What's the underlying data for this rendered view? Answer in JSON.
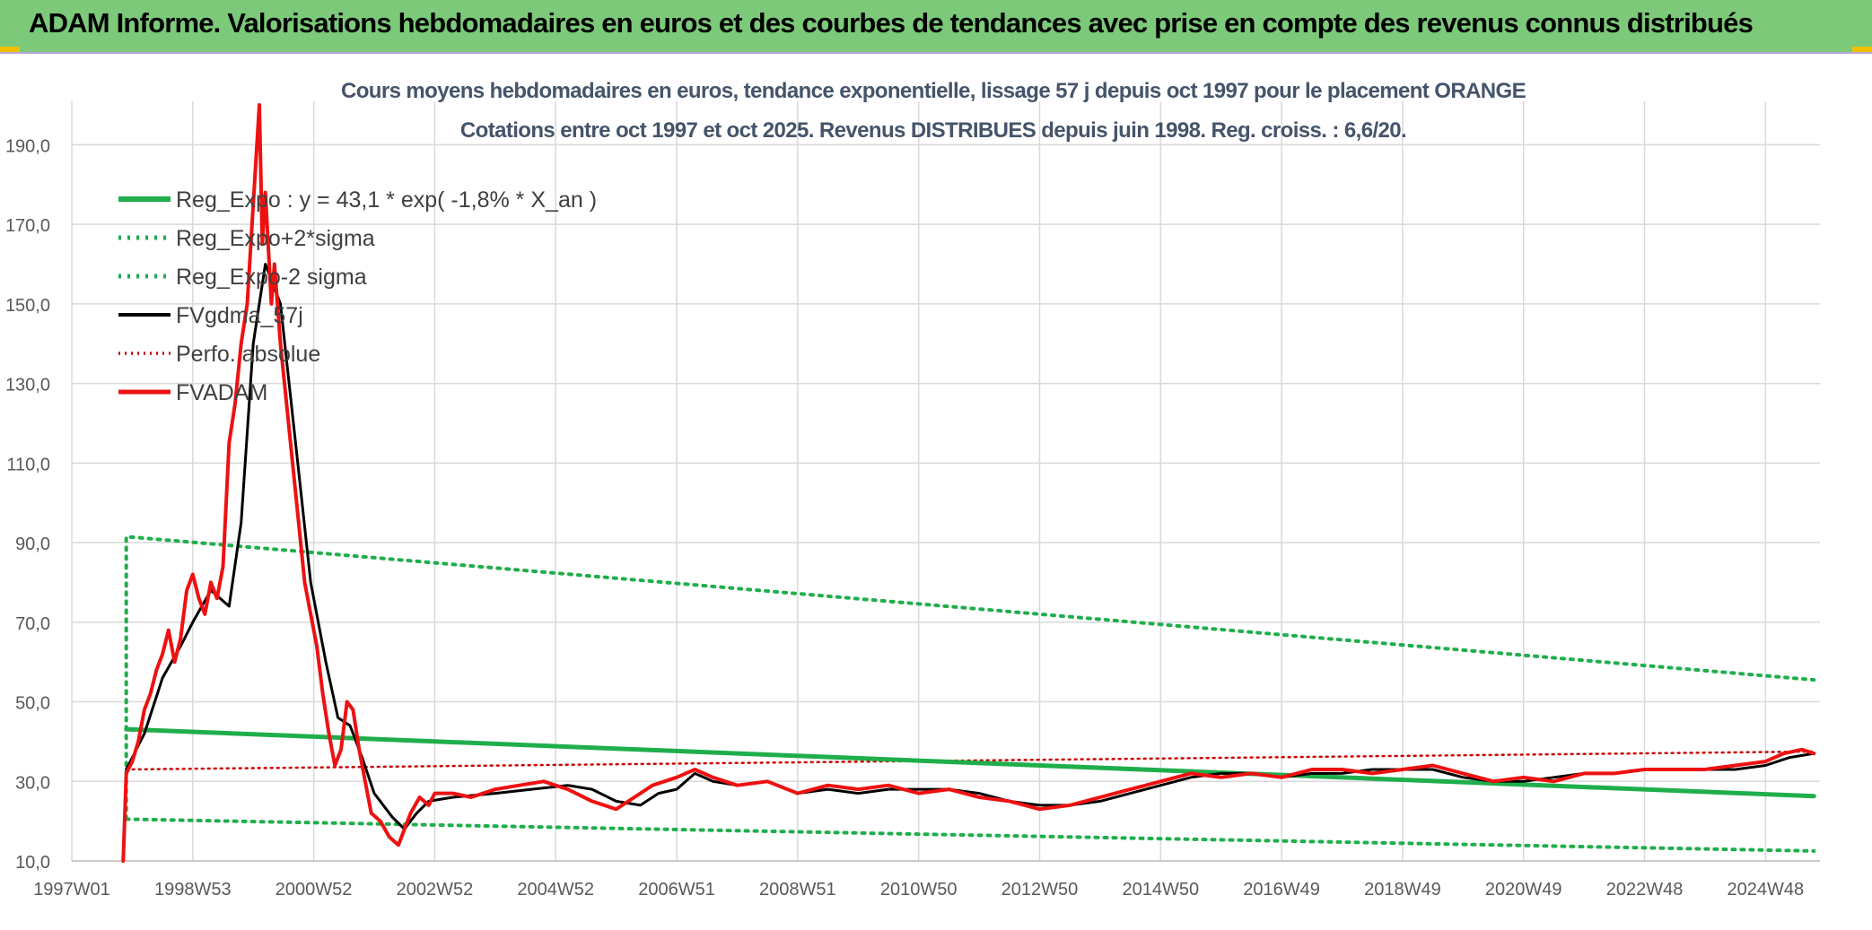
{
  "header": {
    "title": "ADAM Informe. Valorisations hebdomadaires en euros et des courbes de tendances avec prise en compte des revenus connus distribués"
  },
  "colors": {
    "banner": "#7cc97a",
    "reg_exp": "#1fae4b",
    "fvgdma": "#000000",
    "fvadam": "#ee1111",
    "perfo": "#cc0000",
    "title_text": "#44546a",
    "gridline": "#d9d9d9"
  },
  "chart_data": {
    "type": "line",
    "title": "Cours moyens hebdomadaires en euros, tendance exponentielle, lissage 57 j depuis oct 1997 pour le placement ORANGE",
    "subtitle": "Cotations entre oct 1997 et oct 2025. Revenus DISTRIBUES depuis juin 1998. Reg. croiss. : 6,6/20.",
    "xlabel": "",
    "ylabel": "",
    "x_range": [
      1997.0,
      2025.9
    ],
    "ylim": [
      10,
      200
    ],
    "y_ticks": [
      "190,0",
      "170,0",
      "150,0",
      "130,0",
      "110,0",
      "90,0",
      "70,0",
      "50,0",
      "30,0",
      "10,0"
    ],
    "x_tick_labels": [
      "1997W01",
      "1998W53",
      "2000W52",
      "2002W52",
      "2004W52",
      "2006W51",
      "2008W51",
      "2010W50",
      "2012W50",
      "2014W50",
      "2016W49",
      "2018W49",
      "2020W49",
      "2022W48",
      "2024W48"
    ],
    "grid": true,
    "legend_position": "top-left",
    "legend": [
      "Reg_Expo : y = 43,1 * exp( -1,8% *  X_an )",
      "Reg_Expo+2*sigma",
      "Reg_Expo-2 sigma",
      "FVgdma_57j",
      "Perfo. absolue",
      "FVADAM"
    ],
    "series": [
      {
        "name": "Reg_Expo : y = 43,1 * exp( -1,8% *  X_an )",
        "style": "solid-green",
        "x": [
          1997.9,
          2025.8
        ],
        "y": [
          43.1,
          26.3
        ]
      },
      {
        "name": "Reg_Expo+2*sigma",
        "style": "dotted-green",
        "x": [
          1997.9,
          2025.8
        ],
        "y": [
          91.5,
          55.5
        ]
      },
      {
        "name": "Reg_Expo-2 sigma",
        "style": "dotted-green",
        "x": [
          1997.9,
          2025.8
        ],
        "y": [
          20.5,
          12.5
        ]
      },
      {
        "name": "FVgdma_57j",
        "style": "solid-black",
        "x": [
          1997.9,
          1998.2,
          1998.5,
          1998.8,
          1999.0,
          1999.3,
          1999.6,
          1999.8,
          2000.0,
          2000.2,
          2000.45,
          2000.7,
          2000.95,
          2001.2,
          2001.4,
          2001.6,
          2001.8,
          2002.0,
          2002.3,
          2002.5,
          2002.7,
          2002.9,
          2003.3,
          2004.0,
          2004.6,
          2005.2,
          2005.6,
          2006.0,
          2006.4,
          2006.7,
          2007.0,
          2007.3,
          2007.6,
          2008.0,
          2008.5,
          2009.0,
          2009.5,
          2010.0,
          2010.5,
          2011.0,
          2011.5,
          2012.0,
          2012.5,
          2013.0,
          2013.5,
          2014.0,
          2014.5,
          2015.0,
          2015.5,
          2016.0,
          2016.5,
          2017.0,
          2017.5,
          2018.0,
          2018.5,
          2019.0,
          2019.5,
          2020.0,
          2020.5,
          2021.0,
          2021.5,
          2022.0,
          2022.5,
          2023.0,
          2023.5,
          2024.0,
          2024.5,
          2025.0,
          2025.4,
          2025.8
        ],
        "y": [
          33,
          42,
          56,
          64,
          70,
          78,
          74,
          95,
          140,
          160,
          150,
          115,
          80,
          60,
          46,
          44,
          36,
          27,
          21,
          18,
          22,
          25,
          26,
          27,
          28,
          29,
          28,
          25,
          24,
          27,
          28,
          32,
          30,
          29,
          30,
          27,
          28,
          27,
          28,
          28,
          28,
          27,
          25,
          24,
          24,
          25,
          27,
          29,
          31,
          32,
          32,
          31,
          32,
          32,
          33,
          33,
          33,
          31,
          30,
          30,
          31,
          32,
          32,
          33,
          33,
          33,
          33,
          34,
          36,
          37
        ]
      },
      {
        "name": "Perfo. absolue",
        "style": "dotted-red",
        "x": [
          1997.9,
          2025.8
        ],
        "y": [
          33,
          37.5
        ]
      },
      {
        "name": "FVADAM",
        "style": "solid-red",
        "x": [
          1997.85,
          1997.9,
          1998.0,
          1998.1,
          1998.2,
          1998.3,
          1998.4,
          1998.5,
          1998.6,
          1998.7,
          1998.8,
          1998.9,
          1999.0,
          1999.1,
          1999.2,
          1999.3,
          1999.4,
          1999.5,
          1999.6,
          1999.7,
          1999.8,
          1999.9,
          2000.0,
          2000.1,
          2000.15,
          2000.2,
          2000.3,
          2000.35,
          2000.45,
          2000.55,
          2000.65,
          2000.75,
          2000.85,
          2000.95,
          2001.05,
          2001.15,
          2001.25,
          2001.35,
          2001.45,
          2001.55,
          2001.65,
          2001.75,
          2001.85,
          2001.95,
          2002.1,
          2002.25,
          2002.4,
          2002.5,
          2002.6,
          2002.75,
          2002.9,
          2003.0,
          2003.3,
          2003.6,
          2004.0,
          2004.4,
          2004.8,
          2005.2,
          2005.6,
          2006.0,
          2006.3,
          2006.6,
          2007.0,
          2007.3,
          2007.6,
          2008.0,
          2008.5,
          2009.0,
          2009.5,
          2010.0,
          2010.5,
          2011.0,
          2011.5,
          2012.0,
          2012.5,
          2013.0,
          2013.5,
          2014.0,
          2014.5,
          2015.0,
          2015.5,
          2016.0,
          2016.5,
          2017.0,
          2017.5,
          2018.0,
          2018.5,
          2019.0,
          2019.5,
          2020.0,
          2020.5,
          2021.0,
          2021.5,
          2022.0,
          2022.5,
          2023.0,
          2023.5,
          2024.0,
          2024.5,
          2025.0,
          2025.3,
          2025.6,
          2025.8
        ],
        "y": [
          10,
          32,
          35,
          40,
          48,
          52,
          58,
          62,
          68,
          60,
          66,
          78,
          82,
          76,
          72,
          80,
          76,
          84,
          115,
          125,
          140,
          150,
          175,
          200,
          165,
          178,
          150,
          160,
          140,
          125,
          110,
          95,
          80,
          72,
          64,
          52,
          42,
          34,
          38,
          50,
          48,
          38,
          30,
          22,
          20,
          16,
          14,
          18,
          22,
          26,
          24,
          27,
          27,
          26,
          28,
          29,
          30,
          28,
          25,
          23,
          26,
          29,
          31,
          33,
          31,
          29,
          30,
          27,
          29,
          28,
          29,
          27,
          28,
          26,
          25,
          23,
          24,
          26,
          28,
          30,
          32,
          31,
          32,
          31,
          33,
          33,
          32,
          33,
          34,
          32,
          30,
          31,
          30,
          32,
          32,
          33,
          33,
          33,
          34,
          35,
          37,
          38,
          37
        ]
      }
    ]
  }
}
